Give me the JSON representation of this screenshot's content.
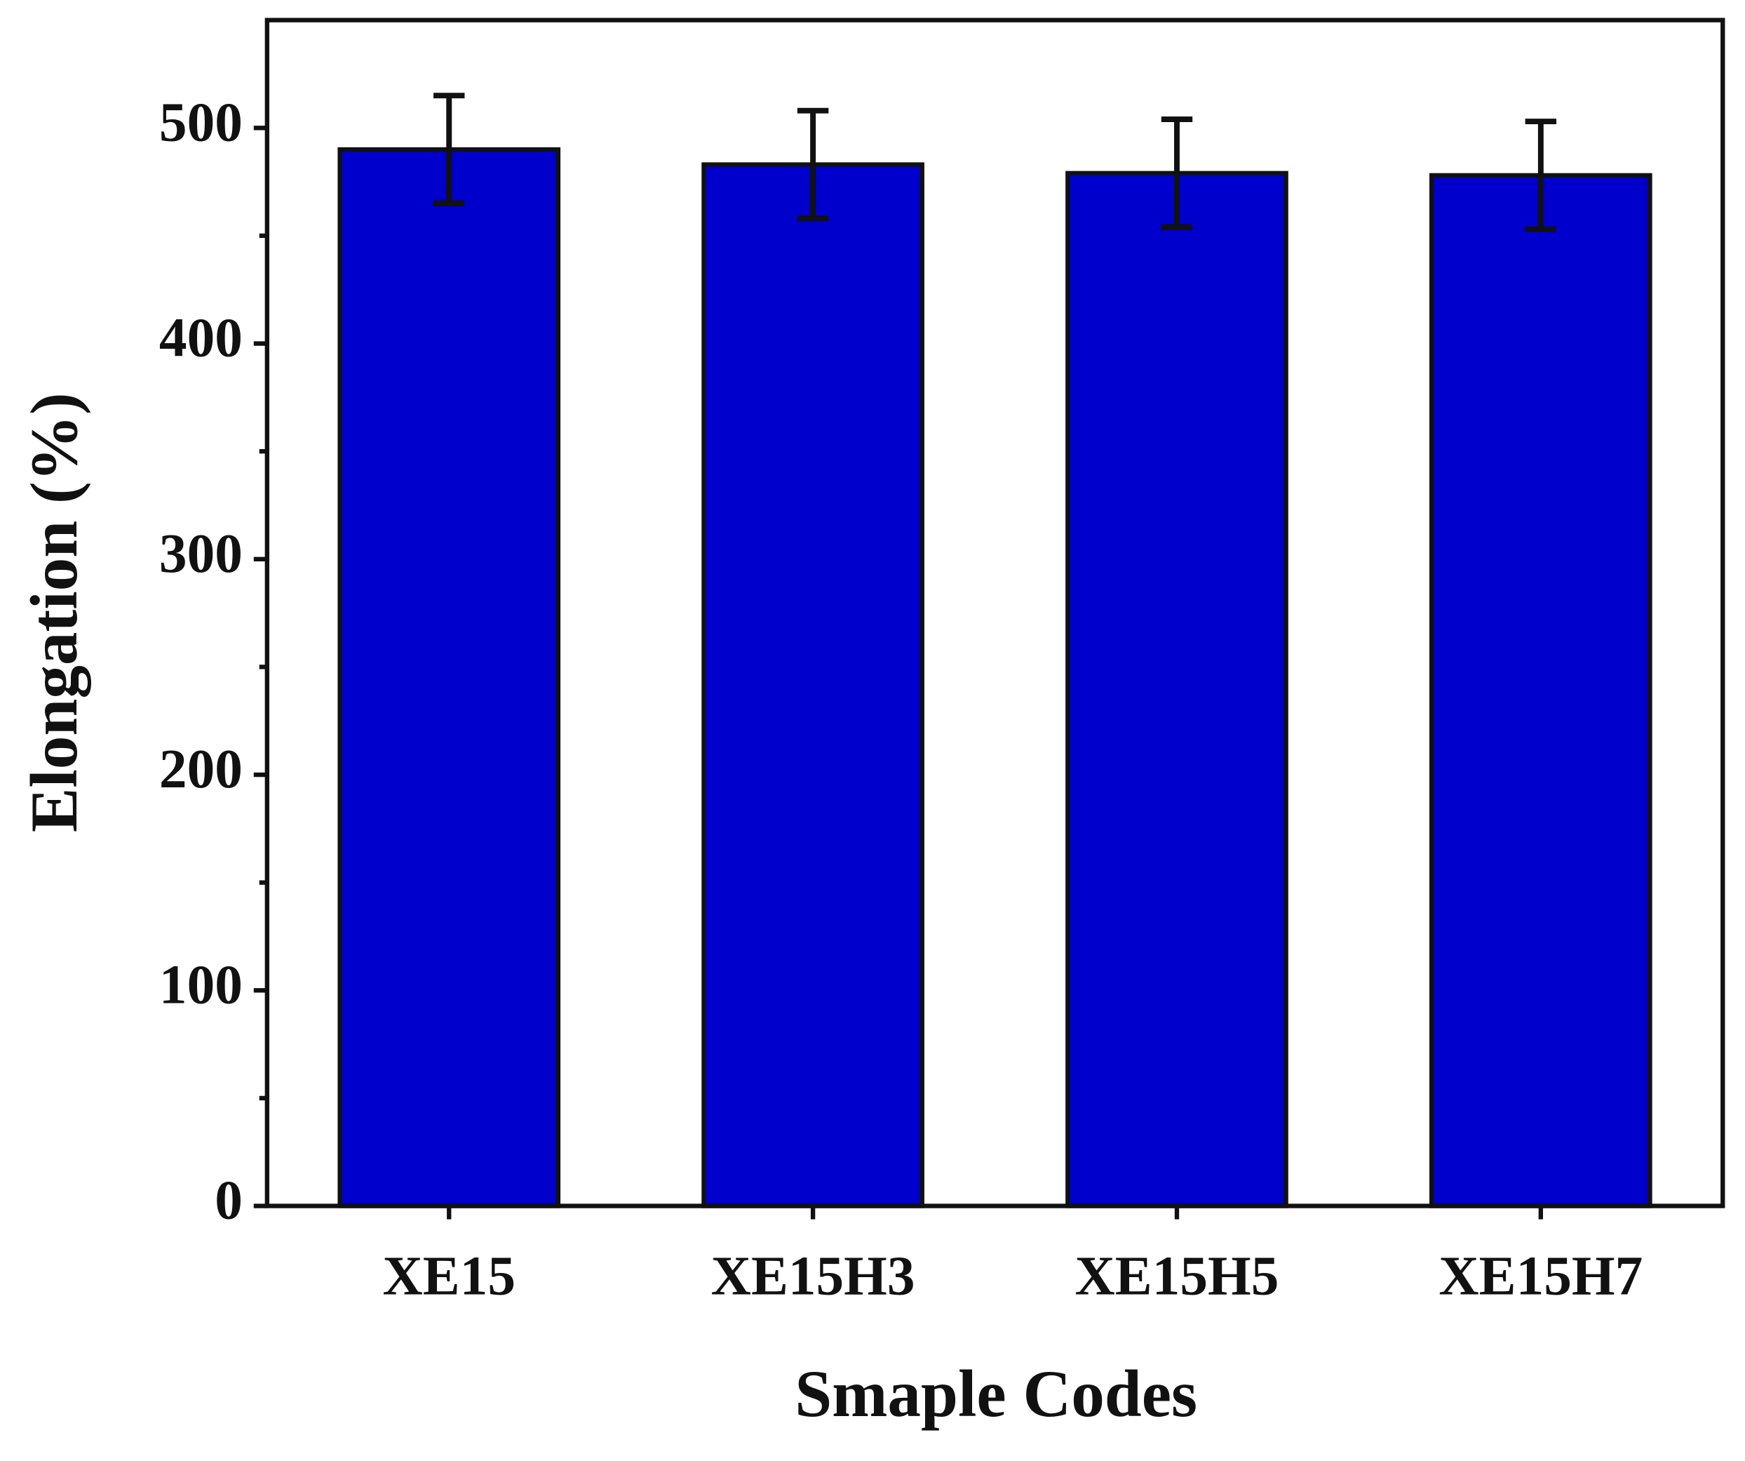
{
  "chart_data": {
    "type": "bar",
    "x_label": "Smaple Codes",
    "y_label": "Elongation (%)",
    "categories": [
      "XE15",
      "XE15H3",
      "XE15H5",
      "XE15H7"
    ],
    "values": [
      490,
      483,
      479,
      478
    ],
    "errors": [
      25,
      25,
      25,
      25
    ],
    "color": "#0000cc",
    "ylim": [
      0,
      550
    ],
    "yticks": [
      0,
      100,
      200,
      300,
      400,
      500
    ],
    "minor_yticks": [
      50,
      150,
      250,
      350,
      450
    ],
    "grid": false
  }
}
